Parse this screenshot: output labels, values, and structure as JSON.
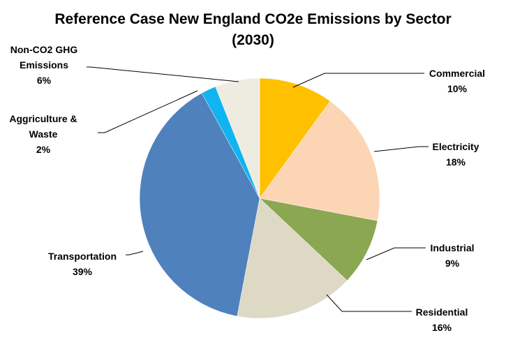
{
  "chart_data": {
    "type": "pie",
    "title_lines": [
      "Reference Case New England CO2e Emissions by Sector",
      "(2030)"
    ],
    "start_angle_deg": 0,
    "direction": "clockwise",
    "slices": [
      {
        "label": "Commercial",
        "value_label": "10%",
        "value": 10,
        "color": "#FFC000",
        "label_lines": [
          "Commercial"
        ]
      },
      {
        "label": "Electricity",
        "value_label": "18%",
        "value": 18,
        "color": "#FCD5B5",
        "label_lines": [
          "Electricity"
        ]
      },
      {
        "label": "Industrial",
        "value_label": "9%",
        "value": 9,
        "color": "#8BA751",
        "label_lines": [
          "Industrial"
        ]
      },
      {
        "label": "Residential",
        "value_label": "16%",
        "value": 16,
        "color": "#DDD9C4",
        "label_lines": [
          "Residential"
        ]
      },
      {
        "label": "Transportation",
        "value_label": "39%",
        "value": 39,
        "color": "#4F81BD",
        "label_lines": [
          "Transportation"
        ]
      },
      {
        "label": "Aggriculture & Waste",
        "value_label": "2%",
        "value": 2,
        "color": "#0FB4F0",
        "label_lines": [
          "Aggriculture &",
          "Waste"
        ]
      },
      {
        "label": "Non-CO2 GHG Emissions",
        "value_label": "6%",
        "value": 6,
        "color": "#EEECE1",
        "label_lines": [
          "Non-CO2 GHG",
          "Emissions"
        ]
      }
    ]
  }
}
